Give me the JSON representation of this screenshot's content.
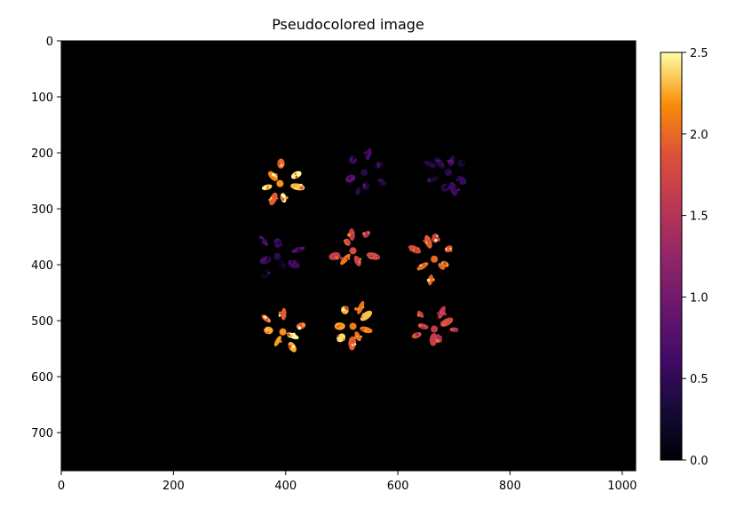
{
  "chart_data": {
    "type": "heatmap",
    "title": "Pseudocolored image",
    "xlabel": "",
    "ylabel": "",
    "xlim": [
      0,
      1024
    ],
    "ylim": [
      768,
      0
    ],
    "x_ticks": [
      0,
      200,
      400,
      600,
      800,
      1000
    ],
    "y_ticks": [
      0,
      100,
      200,
      300,
      400,
      500,
      600,
      700
    ],
    "colormap": "inferno",
    "background_color": "#000000",
    "colorbar": {
      "range": [
        0.0,
        2.5
      ],
      "ticks": [
        "0.0",
        "0.5",
        "1.0",
        "1.5",
        "2.0",
        "2.5"
      ]
    },
    "plants": [
      {
        "cx": 390,
        "cy": 255,
        "value": 2.2
      },
      {
        "cx": 540,
        "cy": 235,
        "value": 0.4
      },
      {
        "cx": 690,
        "cy": 235,
        "value": 0.45
      },
      {
        "cx": 385,
        "cy": 385,
        "value": 0.45
      },
      {
        "cx": 520,
        "cy": 375,
        "value": 1.8
      },
      {
        "cx": 665,
        "cy": 390,
        "value": 2.0
      },
      {
        "cx": 395,
        "cy": 520,
        "value": 2.2
      },
      {
        "cx": 520,
        "cy": 510,
        "value": 2.1
      },
      {
        "cx": 665,
        "cy": 515,
        "value": 1.6
      }
    ]
  }
}
